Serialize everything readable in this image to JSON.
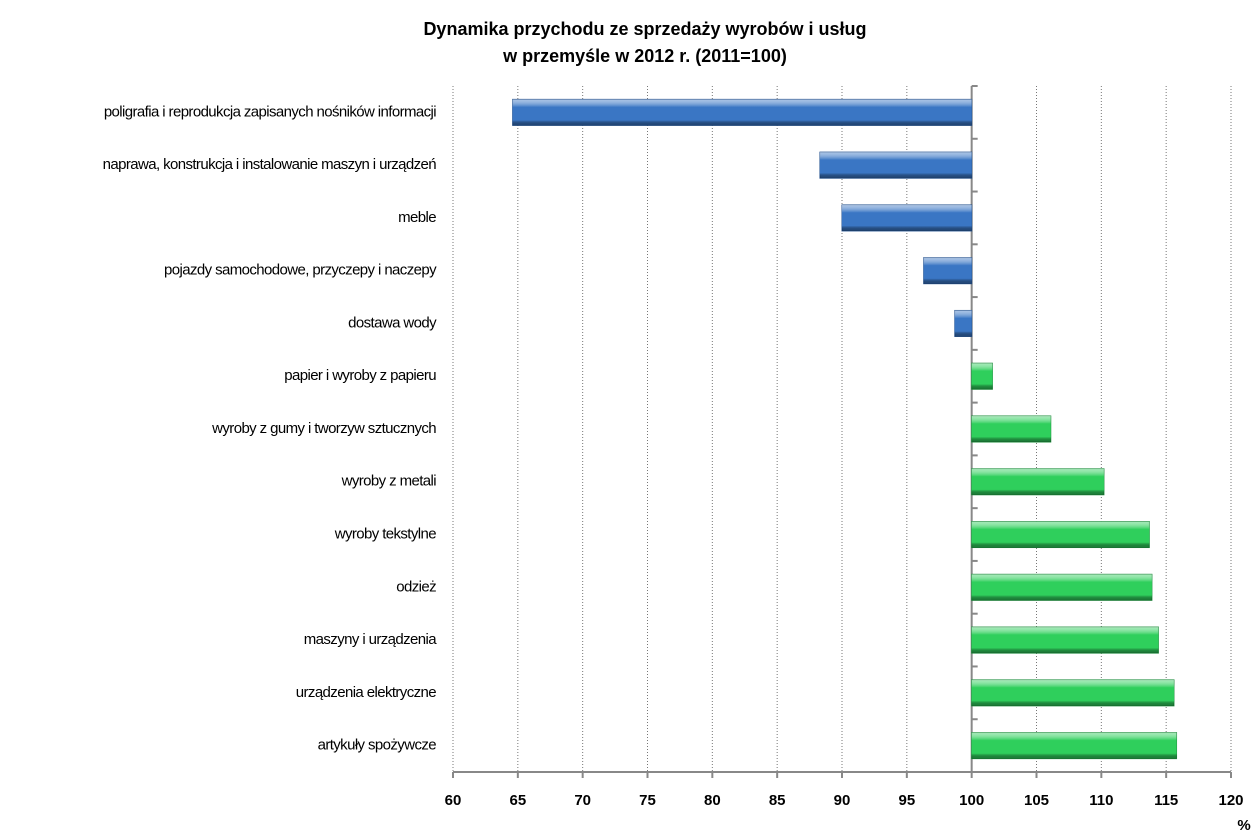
{
  "chart_data": {
    "type": "bar",
    "orientation": "horizontal",
    "title": [
      "Dynamika przychodu ze sprzedaży wyrobów i usług",
      "w przemyśle w 2012 r. (2011=100)"
    ],
    "x_label": "%",
    "categories": [
      "poligrafia i reprodukcja zapisanych nośników informacji",
      "naprawa, konstrukcja i instalowanie maszyn i urządzeń",
      "meble",
      "pojazdy samochodowe, przyczepy i naczepy",
      "dostawa wody",
      "papier i wyroby z papieru",
      "wyroby z gumy i tworzyw sztucznych",
      "wyroby z metali",
      "wyroby tekstylne",
      "odzież",
      "maszyny i urządzenia",
      "urządzenia elektryczne",
      "artykuły spożywcze"
    ],
    "values": [
      64.6,
      88.3,
      90.0,
      96.3,
      98.7,
      101.6,
      106.1,
      110.2,
      113.7,
      113.9,
      114.4,
      115.6,
      115.8
    ],
    "baseline": 100,
    "below_color": "#3a76c4",
    "above_color": "#2fcf5c",
    "xlim": [
      60,
      120
    ],
    "xticks": [
      60,
      65,
      70,
      75,
      80,
      85,
      90,
      95,
      100,
      105,
      110,
      115,
      120
    ],
    "grid": true
  }
}
